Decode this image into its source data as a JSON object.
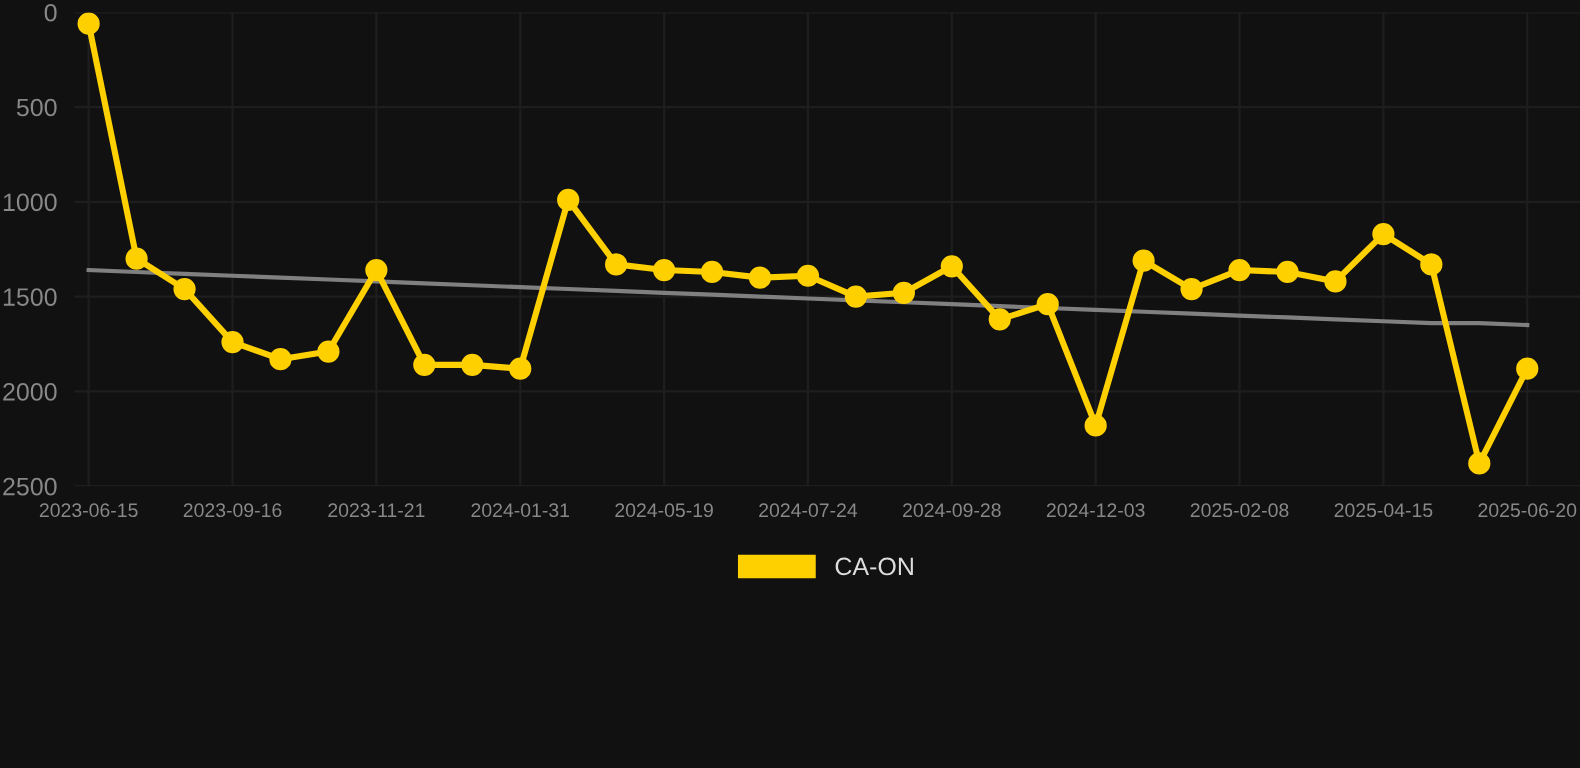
{
  "chart_data": {
    "type": "line",
    "categories": [
      "2023-06-15",
      null,
      null,
      "2023-09-16",
      null,
      null,
      "2023-11-21",
      null,
      null,
      "2024-01-31",
      null,
      null,
      "2024-05-19",
      null,
      null,
      "2024-07-24",
      null,
      null,
      "2024-09-28",
      null,
      null,
      "2024-12-03",
      null,
      null,
      "2025-02-08",
      null,
      null,
      "2025-04-15",
      null,
      null,
      "2025-06-20"
    ],
    "series": [
      {
        "name": "CA-ON",
        "color": "#ffd000",
        "values": [
          60,
          1300,
          1460,
          1740,
          1830,
          1790,
          1360,
          1860,
          1860,
          1880,
          990,
          1330,
          1360,
          1370,
          1400,
          1390,
          1500,
          1480,
          1340,
          1620,
          1540,
          2180,
          1310,
          1460,
          1360,
          1370,
          1420,
          1170,
          1330,
          2380,
          1880
        ]
      },
      {
        "type": "line",
        "marker": "none",
        "color": "#808080",
        "values": [
          1360,
          1370,
          1380,
          1390,
          1400,
          1410,
          1420,
          1430,
          1440,
          1450,
          1460,
          1470,
          1480,
          1490,
          1500,
          1510,
          1520,
          1530,
          1540,
          1550,
          1560,
          1570,
          1580,
          1590,
          1600,
          1610,
          1620,
          1630,
          1640,
          1640,
          1650
        ]
      }
    ],
    "ylim": [
      2500,
      0
    ],
    "yticks": [
      0,
      500,
      1000,
      1500,
      2000,
      2500
    ],
    "grid": true,
    "legend": "bottom",
    "marker": "circle",
    "line_style": "solid"
  }
}
